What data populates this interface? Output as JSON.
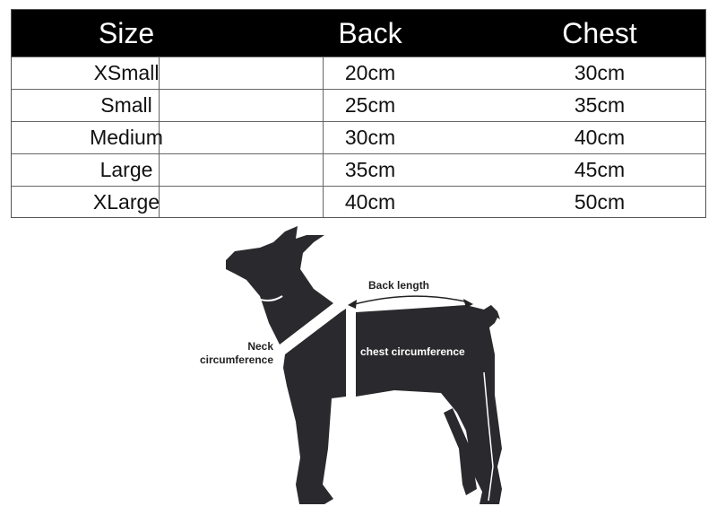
{
  "table": {
    "headers": [
      "Size",
      "Back",
      "Chest"
    ],
    "rows": [
      [
        "XSmall",
        "20cm",
        "30cm"
      ],
      [
        "Small",
        "25cm",
        "35cm"
      ],
      [
        "Medium",
        "30cm",
        "40cm"
      ],
      [
        "Large",
        "35cm",
        "45cm"
      ],
      [
        "XLarge",
        "40cm",
        "50cm"
      ]
    ]
  },
  "diagram": {
    "back_length": "Back length",
    "neck_line1": "Neck",
    "neck_line2": "circumference",
    "chest": "chest circumference",
    "silhouette_color": "#2a2a2e"
  }
}
